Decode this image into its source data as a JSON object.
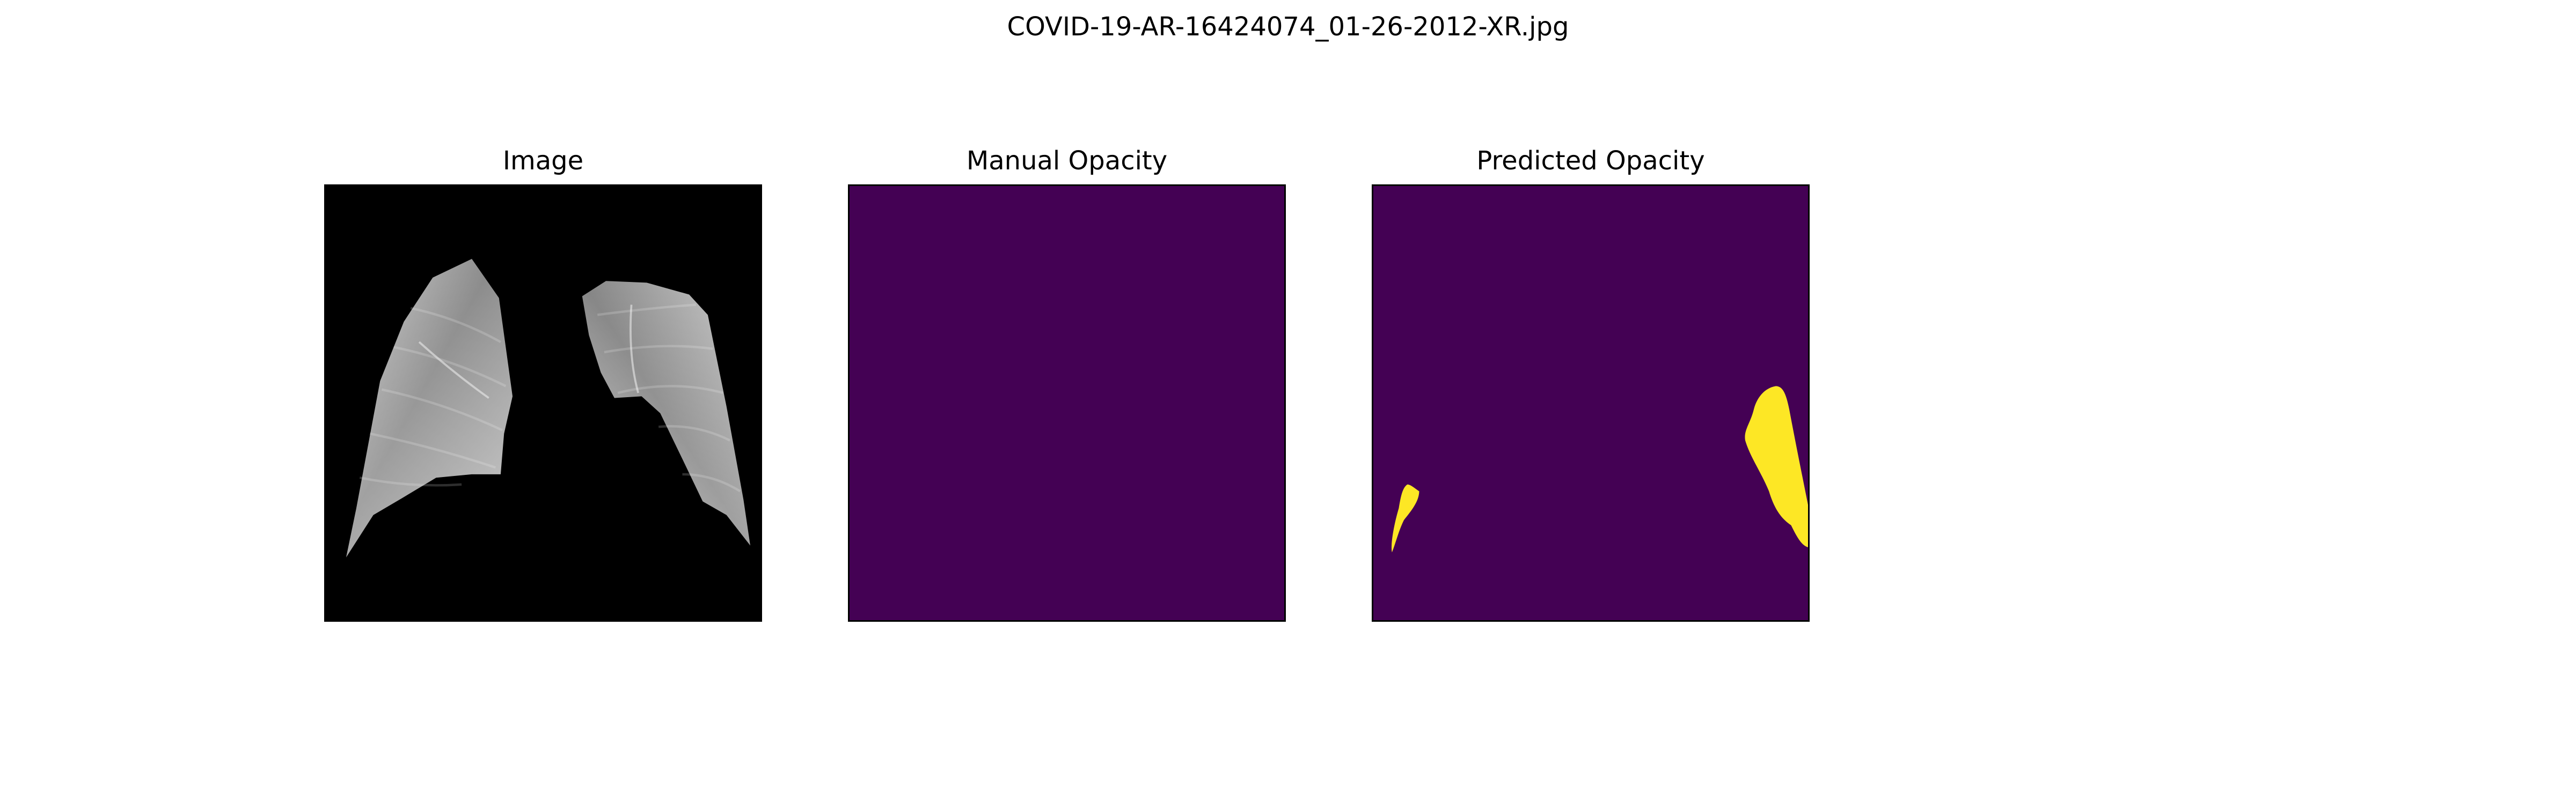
{
  "figure": {
    "title": "COVID-19-AR-16424074_01-26-2012-XR.jpg"
  },
  "panels": [
    {
      "title": "Image",
      "content": "chest x-ray, lung fields segmented on black background"
    },
    {
      "title": "Manual Opacity",
      "content": "empty mask"
    },
    {
      "title": "Predicted Opacity",
      "content": "mask with two opacity regions"
    }
  ],
  "colors": {
    "background": "#ffffff",
    "image_background": "#000000",
    "mask_background": "#440154",
    "mask_foreground": "#fde725",
    "frame": "#000000"
  }
}
